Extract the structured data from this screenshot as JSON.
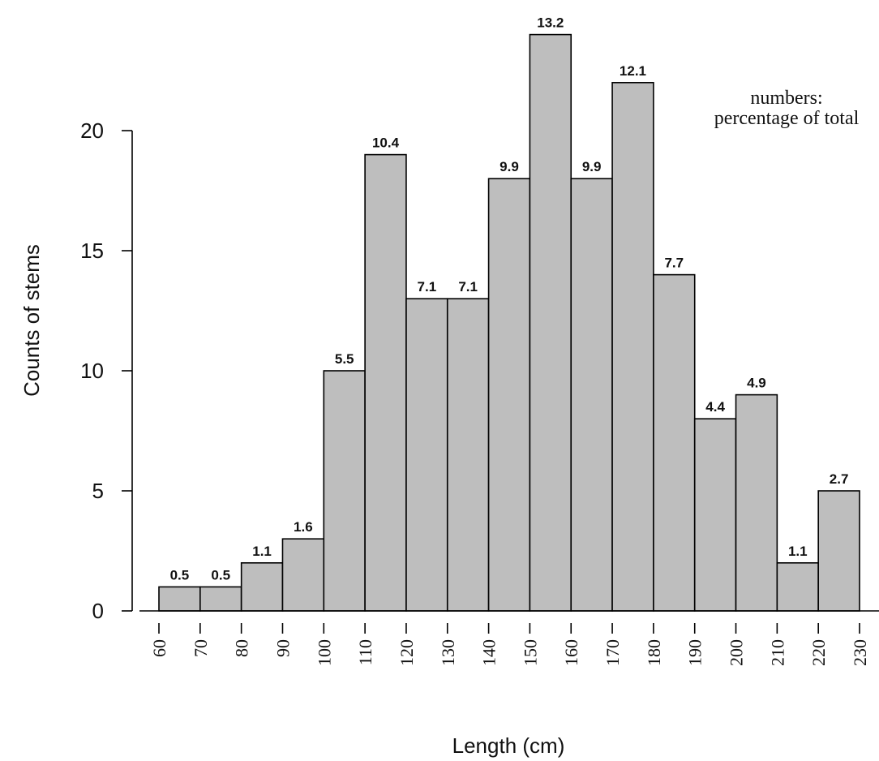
{
  "chart_data": {
    "type": "bar",
    "bin_edges": [
      60,
      70,
      80,
      90,
      100,
      110,
      120,
      130,
      140,
      150,
      160,
      170,
      180,
      190,
      200,
      210,
      220,
      230
    ],
    "values": [
      1,
      1,
      2,
      3,
      10,
      19,
      13,
      13,
      18,
      24,
      18,
      22,
      14,
      8,
      9,
      2,
      5
    ],
    "data_labels": [
      "0.5",
      "0.5",
      "1.1",
      "1.6",
      "5.5",
      "10.4",
      "7.1",
      "7.1",
      "9.9",
      "13.2",
      "9.9",
      "12.1",
      "7.7",
      "4.4",
      "4.9",
      "1.1",
      "2.7"
    ],
    "xlabel": "Length (cm)",
    "ylabel": "Counts of stems",
    "xlim": [
      60,
      230
    ],
    "ylim": [
      0,
      25
    ],
    "y_ticks": [
      0,
      5,
      10,
      15,
      20
    ],
    "x_ticks": [
      60,
      70,
      80,
      90,
      100,
      110,
      120,
      130,
      140,
      150,
      160,
      170,
      180,
      190,
      200,
      210,
      220,
      230
    ],
    "annotation": [
      "numbers:",
      "percentage of total"
    ],
    "grid": false,
    "bar_color": "#bebebe",
    "edge_color": "#000000"
  }
}
